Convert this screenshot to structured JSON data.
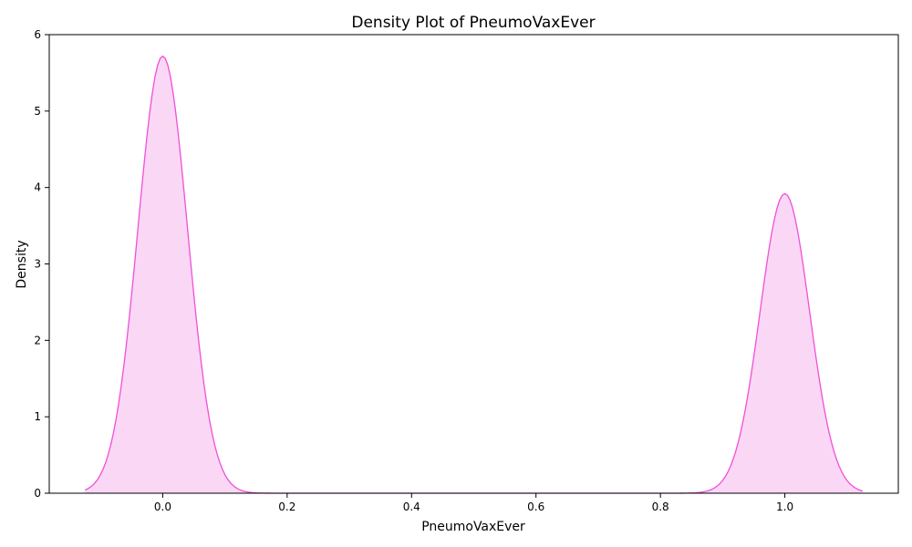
{
  "chart_data": {
    "type": "area",
    "title": "Density Plot of PneumoVaxEver",
    "xlabel": "PneumoVaxEver",
    "ylabel": "Density",
    "xlim": [
      -0.1824,
      1.1824
    ],
    "ylim": [
      0,
      6
    ],
    "x_ticks": [
      0.0,
      0.2,
      0.4,
      0.6,
      0.8,
      1.0
    ],
    "x_tick_labels": [
      "0.0",
      "0.2",
      "0.4",
      "0.6",
      "0.8",
      "1.0"
    ],
    "y_ticks": [
      0,
      1,
      2,
      3,
      4,
      5,
      6
    ],
    "y_tick_labels": [
      "0",
      "1",
      "2",
      "3",
      "4",
      "5",
      "6"
    ],
    "grid": false,
    "colors": {
      "line": "#f050d8",
      "fill": "#fad7f5"
    },
    "x_range": [
      -0.125,
      1.125
    ],
    "peaks": [
      {
        "center": 0.0,
        "height": 5.72,
        "sd": 0.0398
      },
      {
        "center": 1.0,
        "height": 3.92,
        "sd": 0.0398
      }
    ]
  }
}
